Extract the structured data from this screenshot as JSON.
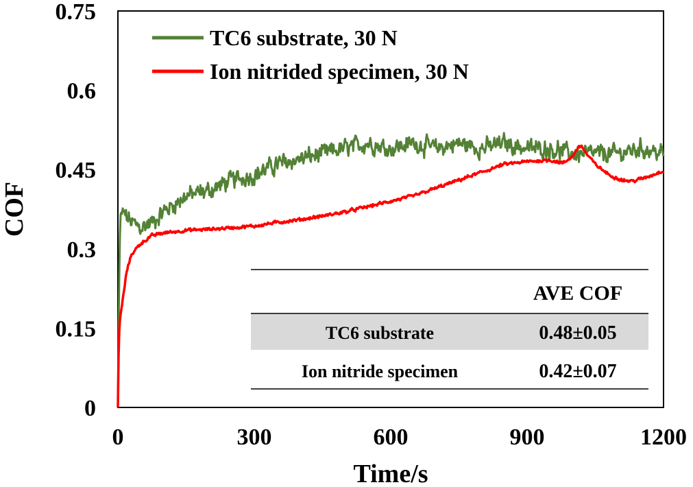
{
  "chart_data": {
    "type": "line",
    "xlabel": "Time/s",
    "ylabel": "COF",
    "xlim": [
      0,
      1200
    ],
    "ylim": [
      0,
      0.75
    ],
    "x_ticks": [
      "0",
      "300",
      "600",
      "900",
      "1200"
    ],
    "y_ticks": [
      "0",
      "0.15",
      "0.3",
      "0.45",
      "0.6",
      "0.75"
    ],
    "legend_position": "top-left",
    "series": [
      {
        "name": "TC6 substrate, 30 N",
        "color": "#538135",
        "x": [
          0,
          2,
          5,
          10,
          20,
          30,
          50,
          75,
          100,
          150,
          200,
          250,
          300,
          350,
          400,
          450,
          500,
          550,
          600,
          650,
          700,
          750,
          800,
          850,
          900,
          950,
          1000,
          1050,
          1100,
          1150,
          1200
        ],
        "values": [
          0.0,
          0.2,
          0.35,
          0.37,
          0.36,
          0.35,
          0.34,
          0.35,
          0.37,
          0.4,
          0.41,
          0.43,
          0.44,
          0.46,
          0.47,
          0.48,
          0.49,
          0.5,
          0.49,
          0.5,
          0.49,
          0.5,
          0.49,
          0.5,
          0.49,
          0.49,
          0.48,
          0.48,
          0.48,
          0.49,
          0.48
        ],
        "noise": 0.022
      },
      {
        "name": "Ion nitrided specimen, 30 N",
        "color": "#ff0000",
        "x": [
          0,
          2,
          5,
          10,
          15,
          20,
          30,
          40,
          50,
          75,
          100,
          150,
          200,
          250,
          300,
          350,
          400,
          450,
          500,
          550,
          600,
          650,
          700,
          750,
          800,
          850,
          900,
          950,
          980,
          1000,
          1010,
          1020,
          1030,
          1050,
          1080,
          1110,
          1130,
          1150,
          1170,
          1200
        ],
        "values": [
          0.0,
          0.13,
          0.17,
          0.2,
          0.23,
          0.26,
          0.29,
          0.3,
          0.31,
          0.325,
          0.33,
          0.335,
          0.337,
          0.34,
          0.343,
          0.35,
          0.355,
          0.362,
          0.37,
          0.38,
          0.39,
          0.4,
          0.415,
          0.43,
          0.445,
          0.46,
          0.465,
          0.468,
          0.462,
          0.475,
          0.49,
          0.495,
          0.48,
          0.46,
          0.44,
          0.43,
          0.428,
          0.432,
          0.438,
          0.448
        ],
        "noise": 0.004
      }
    ],
    "table": {
      "header": "AVE COF",
      "rows": [
        {
          "label": "TC6 substrate",
          "value": "0.48±0.05",
          "shaded": true
        },
        {
          "label": "Ion nitride specimen",
          "value": "0.42±0.07",
          "shaded": false
        }
      ],
      "shade_color": "#d9d9d9"
    }
  }
}
